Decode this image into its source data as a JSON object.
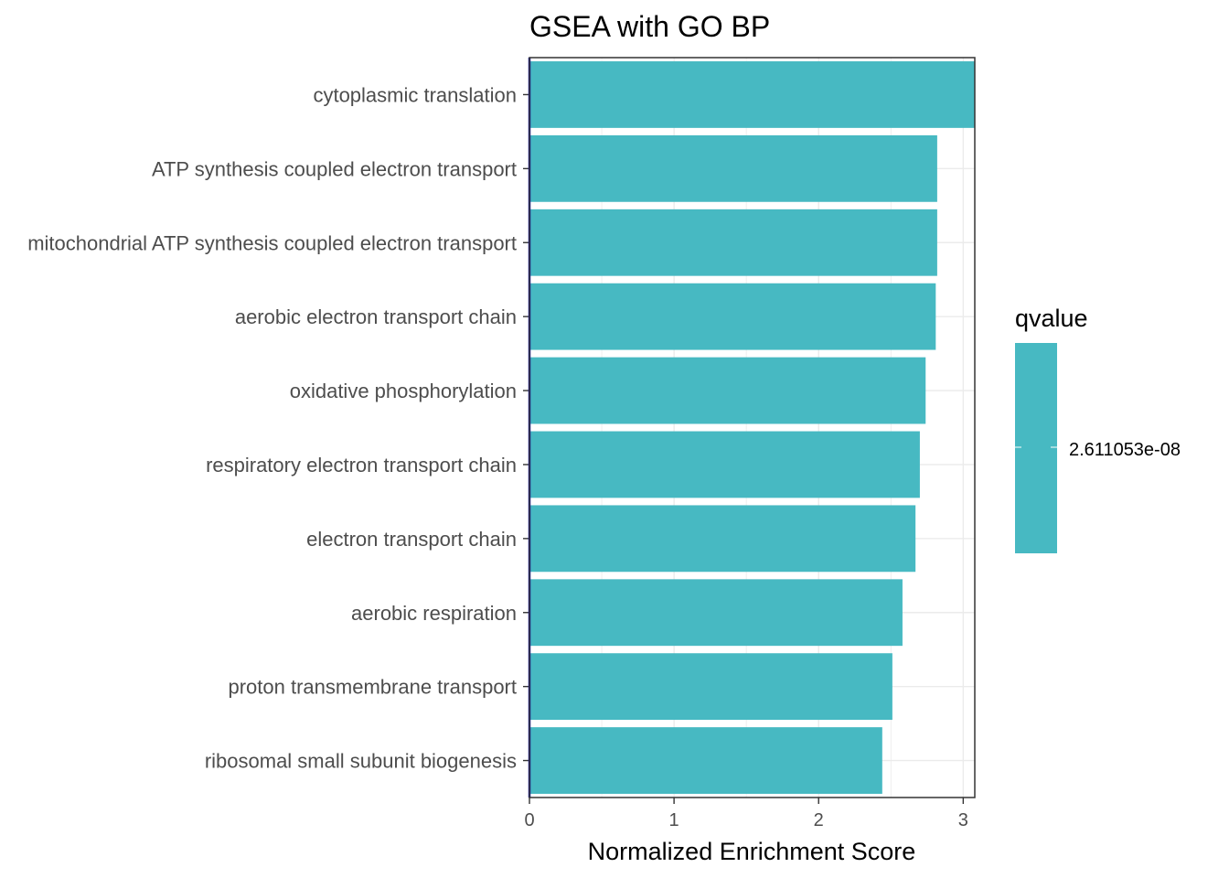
{
  "chart_data": {
    "type": "bar",
    "orientation": "horizontal",
    "title": "GSEA with GO BP",
    "xlabel": "Normalized Enrichment Score",
    "ylabel": "",
    "categories": [
      "cytoplasmic translation",
      "ATP synthesis coupled electron transport",
      "mitochondrial ATP synthesis coupled electron transport",
      "aerobic electron transport chain",
      "oxidative phosphorylation",
      "respiratory electron transport chain",
      "electron transport chain",
      "aerobic respiration",
      "proton transmembrane transport",
      "ribosomal small subunit biogenesis"
    ],
    "values": [
      3.08,
      2.82,
      2.82,
      2.81,
      2.74,
      2.7,
      2.67,
      2.58,
      2.51,
      2.44
    ],
    "xlim": [
      0,
      3.08
    ],
    "xticks": [
      0,
      1,
      2,
      3
    ],
    "xtick_labels": [
      "0",
      "1",
      "2",
      "3"
    ],
    "grid": true,
    "bar_color": "#47B9C2",
    "zero_line_color": "#1111AA",
    "legend": {
      "title": "qvalue",
      "label": "2.611053e-08",
      "placement": "right",
      "color": "#47B9C2"
    }
  }
}
